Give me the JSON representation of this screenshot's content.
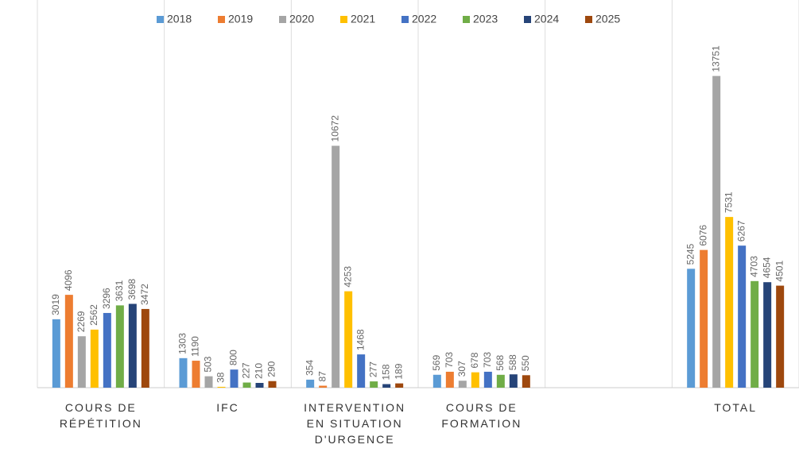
{
  "chart_data": {
    "type": "bar",
    "categories": [
      "COURS DE RÉPÉTITION",
      "IFC",
      "INTERVENTION EN SITUATION D'URGENCE",
      "COURS DE FORMATION",
      null,
      "TOTAL"
    ],
    "series": [
      {
        "name": "2018",
        "color": "#5b9bd5",
        "values": [
          3019,
          1303,
          354,
          569,
          null,
          5245
        ]
      },
      {
        "name": "2019",
        "color": "#ed7d31",
        "values": [
          4096,
          1190,
          87,
          703,
          null,
          6076
        ]
      },
      {
        "name": "2020",
        "color": "#a5a5a5",
        "values": [
          2269,
          503,
          10672,
          307,
          null,
          13751
        ]
      },
      {
        "name": "2021",
        "color": "#ffc000",
        "values": [
          2562,
          38,
          4253,
          678,
          null,
          7531
        ]
      },
      {
        "name": "2022",
        "color": "#4472c4",
        "values": [
          3296,
          800,
          1468,
          703,
          null,
          6267
        ]
      },
      {
        "name": "2023",
        "color": "#70ad47",
        "values": [
          3631,
          227,
          277,
          568,
          null,
          4703
        ]
      },
      {
        "name": "2024",
        "color": "#264478",
        "values": [
          3698,
          210,
          158,
          588,
          null,
          4654
        ]
      },
      {
        "name": "2025",
        "color": "#9e480e",
        "values": [
          3472,
          290,
          189,
          550,
          null,
          4501
        ]
      }
    ],
    "ylim": [
      0,
      15000
    ],
    "legend": "top"
  }
}
